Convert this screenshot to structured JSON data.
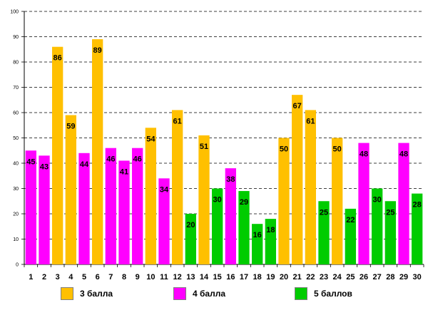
{
  "chart_data": {
    "type": "bar",
    "title": "",
    "xlabel": "",
    "ylabel": "",
    "ylim": [
      0,
      100
    ],
    "yticks": [
      0,
      10,
      20,
      30,
      40,
      50,
      60,
      70,
      80,
      90,
      100
    ],
    "grid": true,
    "categories": [
      "1",
      "2",
      "3",
      "4",
      "5",
      "6",
      "7",
      "8",
      "9",
      "10",
      "11",
      "12",
      "13",
      "14",
      "15",
      "16",
      "17",
      "18",
      "19",
      "20",
      "21",
      "22",
      "23",
      "24",
      "25",
      "26",
      "27",
      "28",
      "29",
      "30"
    ],
    "values": [
      45,
      43,
      86,
      59,
      44,
      89,
      46,
      41,
      46,
      54,
      34,
      61,
      20,
      51,
      30,
      38,
      29,
      16,
      18,
      50,
      67,
      61,
      25,
      50,
      22,
      48,
      30,
      25,
      48,
      28
    ],
    "groups": [
      "4",
      "4",
      "3",
      "3",
      "4",
      "3",
      "4",
      "4",
      "4",
      "3",
      "4",
      "3",
      "5",
      "3",
      "5",
      "4",
      "5",
      "5",
      "5",
      "3",
      "3",
      "3",
      "5",
      "3",
      "5",
      "4",
      "5",
      "5",
      "4",
      "5"
    ],
    "legend": [
      {
        "key": "3",
        "label": "3 балла",
        "color": "#FFC000"
      },
      {
        "key": "4",
        "label": "4 балла",
        "color": "#FF00FF"
      },
      {
        "key": "5",
        "label": "5 баллов",
        "color": "#00CC00"
      }
    ],
    "legend_position": "bottom"
  }
}
